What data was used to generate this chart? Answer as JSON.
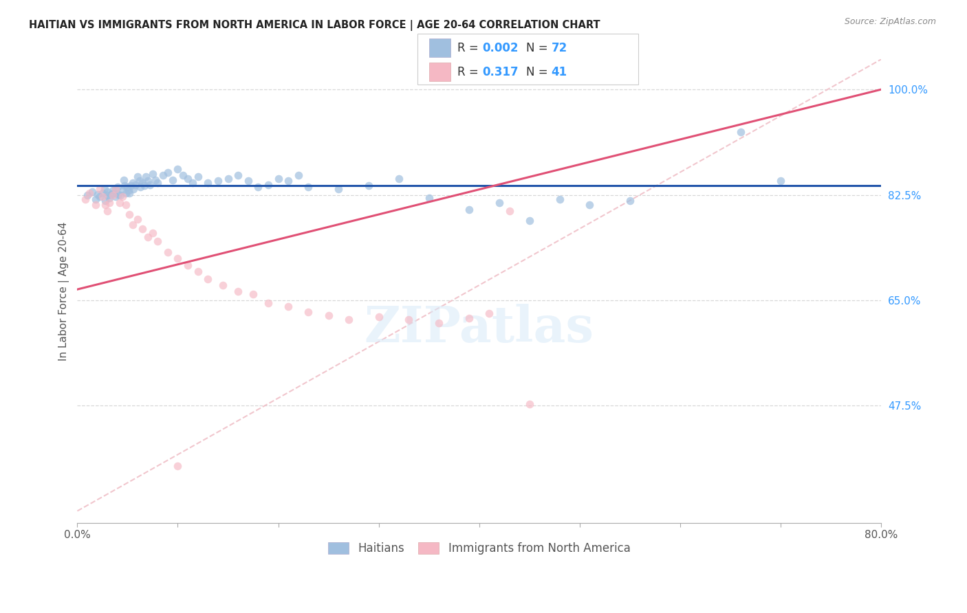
{
  "title": "HAITIAN VS IMMIGRANTS FROM NORTH AMERICA IN LABOR FORCE | AGE 20-64 CORRELATION CHART",
  "source": "Source: ZipAtlas.com",
  "ylabel": "In Labor Force | Age 20-64",
  "xlim": [
    0.0,
    0.8
  ],
  "ylim": [
    0.28,
    1.05
  ],
  "xticks": [
    0.0,
    0.1,
    0.2,
    0.3,
    0.4,
    0.5,
    0.6,
    0.7,
    0.8
  ],
  "xticklabels": [
    "0.0%",
    "",
    "",
    "",
    "",
    "",
    "",
    "",
    "80.0%"
  ],
  "yticks": [
    0.475,
    0.65,
    0.825,
    1.0
  ],
  "yticklabels": [
    "47.5%",
    "65.0%",
    "82.5%",
    "100.0%"
  ],
  "blue_color": "#a0bfdf",
  "pink_color": "#f5b8c4",
  "blue_line_color": "#2255aa",
  "pink_line_color": "#e05075",
  "blue_scatter_alpha": 0.7,
  "pink_scatter_alpha": 0.65,
  "marker_size": 70,
  "background_color": "#ffffff",
  "grid_color": "#d8d8d8",
  "diag_color": "#f0c0c8",
  "legend_R_blue": "0.002",
  "legend_N_blue": "72",
  "legend_R_pink": "0.317",
  "legend_N_pink": "41",
  "blue_x": [
    0.01,
    0.015,
    0.018,
    0.02,
    0.022,
    0.025,
    0.027,
    0.028,
    0.03,
    0.03,
    0.032,
    0.033,
    0.035,
    0.036,
    0.038,
    0.038,
    0.04,
    0.041,
    0.043,
    0.045,
    0.046,
    0.047,
    0.048,
    0.05,
    0.051,
    0.052,
    0.053,
    0.055,
    0.056,
    0.058,
    0.06,
    0.062,
    0.063,
    0.065,
    0.067,
    0.068,
    0.07,
    0.072,
    0.075,
    0.078,
    0.08,
    0.085,
    0.09,
    0.095,
    0.1,
    0.105,
    0.11,
    0.115,
    0.12,
    0.13,
    0.14,
    0.15,
    0.16,
    0.17,
    0.18,
    0.19,
    0.2,
    0.21,
    0.22,
    0.23,
    0.26,
    0.29,
    0.32,
    0.35,
    0.39,
    0.42,
    0.45,
    0.48,
    0.51,
    0.55,
    0.66,
    0.7
  ],
  "blue_y": [
    0.824,
    0.83,
    0.818,
    0.826,
    0.822,
    0.828,
    0.835,
    0.815,
    0.825,
    0.83,
    0.82,
    0.826,
    0.832,
    0.828,
    0.822,
    0.835,
    0.838,
    0.826,
    0.824,
    0.832,
    0.85,
    0.84,
    0.828,
    0.838,
    0.832,
    0.828,
    0.84,
    0.845,
    0.835,
    0.842,
    0.855,
    0.848,
    0.838,
    0.845,
    0.84,
    0.855,
    0.848,
    0.842,
    0.86,
    0.85,
    0.845,
    0.858,
    0.862,
    0.85,
    0.868,
    0.858,
    0.852,
    0.845,
    0.855,
    0.845,
    0.848,
    0.852,
    0.858,
    0.848,
    0.838,
    0.842,
    0.852,
    0.848,
    0.858,
    0.838,
    0.835,
    0.84,
    0.852,
    0.82,
    0.8,
    0.812,
    0.782,
    0.818,
    0.808,
    0.815,
    0.93,
    0.848
  ],
  "pink_x": [
    0.008,
    0.012,
    0.018,
    0.022,
    0.025,
    0.028,
    0.03,
    0.032,
    0.035,
    0.038,
    0.042,
    0.045,
    0.048,
    0.052,
    0.055,
    0.06,
    0.065,
    0.07,
    0.075,
    0.08,
    0.09,
    0.1,
    0.11,
    0.12,
    0.13,
    0.145,
    0.16,
    0.175,
    0.19,
    0.21,
    0.23,
    0.25,
    0.27,
    0.3,
    0.33,
    0.36,
    0.39,
    0.41,
    0.43,
    0.45,
    0.1
  ],
  "pink_y": [
    0.818,
    0.828,
    0.808,
    0.835,
    0.822,
    0.808,
    0.798,
    0.812,
    0.825,
    0.835,
    0.812,
    0.822,
    0.808,
    0.792,
    0.775,
    0.785,
    0.768,
    0.755,
    0.762,
    0.748,
    0.73,
    0.72,
    0.708,
    0.698,
    0.685,
    0.675,
    0.665,
    0.66,
    0.645,
    0.64,
    0.63,
    0.625,
    0.618,
    0.622,
    0.618,
    0.612,
    0.62,
    0.628,
    0.798,
    0.478,
    0.375
  ],
  "pink_line_x0": 0.0,
  "pink_line_y0": 0.668,
  "pink_line_x1": 0.8,
  "pink_line_y1": 1.0,
  "blue_line_y": 0.84
}
